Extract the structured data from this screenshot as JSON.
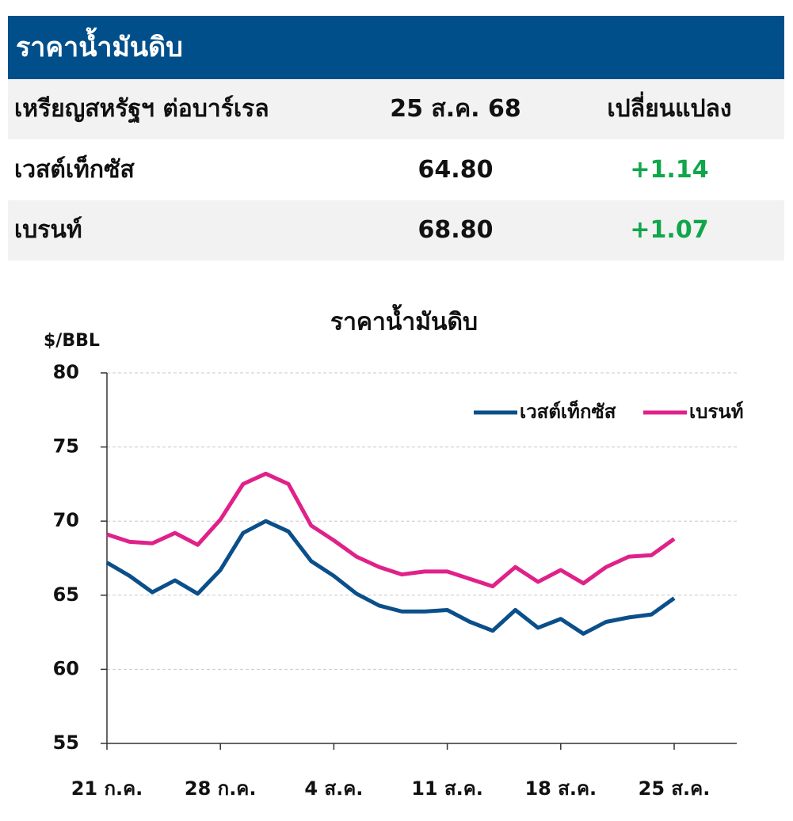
{
  "header": {
    "title": "ราคาน้ำมันดิบ"
  },
  "table": {
    "header": [
      "เหรียญสหรัฐฯ ต่อบาร์เรล",
      "25 ส.ค. 68",
      "เปลี่ยนแปลง"
    ],
    "rows": [
      [
        "เวสต์เท็กซัส",
        "64.80",
        "+1.14"
      ],
      [
        "เบรนท์",
        "68.80",
        "+1.07"
      ]
    ]
  },
  "chart_data": {
    "type": "line",
    "title": "ราคาน้ำมันดิบ",
    "y_label": "$/BBL",
    "categories": [
      "21 ก.ค.",
      null,
      null,
      null,
      null,
      "28 ก.ค.",
      null,
      null,
      null,
      null,
      "4 ส.ค.",
      null,
      null,
      null,
      null,
      "11 ส.ค.",
      null,
      null,
      null,
      null,
      "18 ส.ค.",
      null,
      null,
      null,
      null,
      "25 ส.ค."
    ],
    "series": [
      {
        "name": "เวสต์เท็กซัส",
        "color": "#0b4f8a",
        "values": [
          67.2,
          66.3,
          65.2,
          66.0,
          65.1,
          66.7,
          69.2,
          70.0,
          69.3,
          67.3,
          66.3,
          65.1,
          64.3,
          63.9,
          63.9,
          64.0,
          63.2,
          62.6,
          64.0,
          62.8,
          63.4,
          62.4,
          63.2,
          63.5,
          63.7,
          64.8
        ]
      },
      {
        "name": "เบรนท์",
        "color": "#e0218a",
        "values": [
          69.1,
          68.6,
          68.5,
          69.2,
          68.4,
          70.1,
          72.5,
          73.2,
          72.5,
          69.7,
          68.7,
          67.6,
          66.9,
          66.4,
          66.6,
          66.6,
          66.1,
          65.6,
          66.9,
          65.9,
          66.7,
          65.8,
          66.9,
          67.6,
          67.7,
          68.8
        ]
      }
    ],
    "ylim": [
      55,
      80
    ],
    "yticks": [
      55,
      60,
      65,
      70,
      75,
      80
    ],
    "grid": true,
    "legend": "top-right"
  }
}
